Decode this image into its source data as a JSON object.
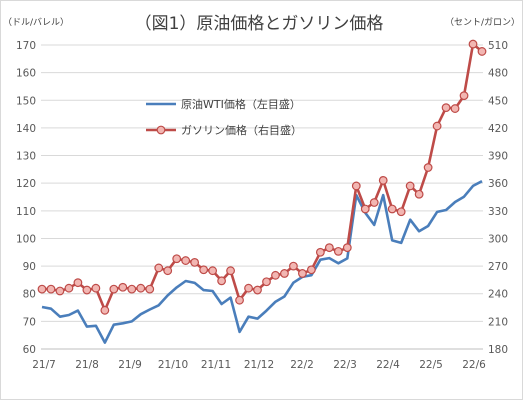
{
  "chart_data": {
    "type": "line",
    "title": "（図1）原油価格とガソリン価格",
    "left_unit": "（ドル/バレル）",
    "right_unit": "（セント/ガロン）",
    "x_tick_labels": [
      "21/7",
      "21/8",
      "21/9",
      "21/10",
      "21/11",
      "21/12",
      "22/2",
      "22/3",
      "22/4",
      "22/5",
      "22/6"
    ],
    "y_left": {
      "min": 60,
      "max": 170,
      "step": 10
    },
    "y_right": {
      "min": 180,
      "max": 510,
      "step": 30
    },
    "grid": true,
    "legend_position": "upper-left-inside",
    "series": [
      {
        "name": "原油WTI価格（左目盛）",
        "axis": "left",
        "color": "#4a7ebb",
        "marker": false,
        "values": [
          75.2,
          74.6,
          71.7,
          72.3,
          73.9,
          68.1,
          68.4,
          62.3,
          68.8,
          69.3,
          70.0,
          72.6,
          74.3,
          75.8,
          79.4,
          82.3,
          84.6,
          83.9,
          81.3,
          81.0,
          76.3,
          78.6,
          66.2,
          71.7,
          71.0,
          73.9,
          77.1,
          79.0,
          84.0,
          86.1,
          86.7,
          92.3,
          92.9,
          91.0,
          92.8,
          115.7,
          109.3,
          104.9,
          115.7,
          99.3,
          98.4,
          106.8,
          102.6,
          104.5,
          109.6,
          110.3,
          113.2,
          115.1,
          119.0,
          120.7
        ]
      },
      {
        "name": "ガソリン価格（右目盛）",
        "axis": "right",
        "color": "#be4b48",
        "marker": true,
        "values": [
          245,
          245,
          243,
          246,
          252,
          244,
          246,
          222,
          245,
          247,
          245,
          246,
          245,
          268,
          265,
          278,
          276,
          274,
          266,
          265,
          254,
          265,
          233,
          246,
          244,
          253,
          260,
          262,
          270,
          262,
          266,
          285,
          290,
          286,
          290,
          357,
          332,
          339,
          363,
          332,
          329,
          357,
          348,
          377,
          422,
          442,
          441,
          455,
          511,
          503
        ]
      }
    ]
  }
}
